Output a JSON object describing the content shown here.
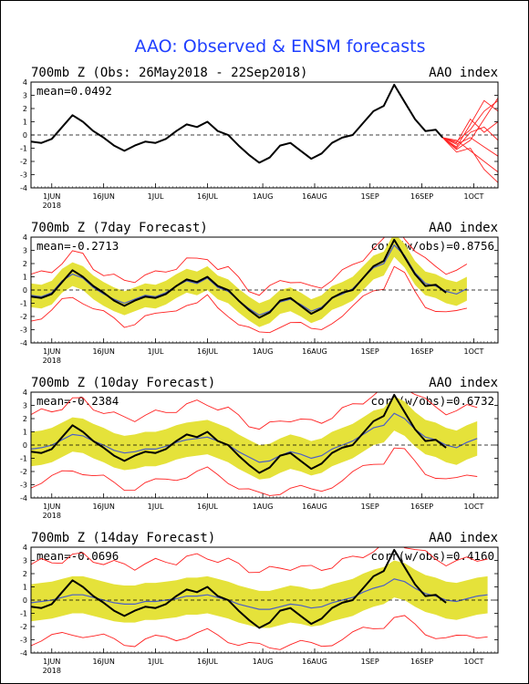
{
  "title": "AAO: Observed & ENSM forecasts",
  "x_ticks": [
    "1JUN",
    "16JUN",
    "1JUL",
    "16JUL",
    "1AUG",
    "16AUG",
    "1SEP",
    "16SEP",
    "1OCT"
  ],
  "x_year": "2018",
  "y_ticks": [
    "4",
    "3",
    "2",
    "1",
    "0",
    "-1",
    "-2",
    "-3",
    "-4"
  ],
  "colors": {
    "title": "#1f3fff",
    "observed": "#000000",
    "spread": "#e5e23a",
    "members": "#ff2020",
    "ens_mean": "#4a5ec8",
    "zero_line": "#000000"
  },
  "chart_data": [
    {
      "type": "line",
      "title": "700mb Z (Obs: 26May2018 - 22Sep2018)",
      "index_label": "AAO index",
      "stat_label": "mean=0.0492",
      "corr_label": "",
      "ylim": [
        -4,
        4
      ],
      "x_range": [
        "2018-05-26",
        "2018-10-08"
      ],
      "zero_line": true,
      "series": [
        {
          "role": "observed",
          "x": [
            "2018-05-26",
            "2018-05-29",
            "2018-06-01",
            "2018-06-04",
            "2018-06-07",
            "2018-06-10",
            "2018-06-13",
            "2018-06-16",
            "2018-06-19",
            "2018-06-22",
            "2018-06-25",
            "2018-06-28",
            "2018-07-01",
            "2018-07-04",
            "2018-07-07",
            "2018-07-10",
            "2018-07-13",
            "2018-07-16",
            "2018-07-19",
            "2018-07-22",
            "2018-07-25",
            "2018-07-28",
            "2018-07-31",
            "2018-08-03",
            "2018-08-06",
            "2018-08-09",
            "2018-08-12",
            "2018-08-15",
            "2018-08-18",
            "2018-08-21",
            "2018-08-24",
            "2018-08-27",
            "2018-08-30",
            "2018-09-02",
            "2018-09-05",
            "2018-09-08",
            "2018-09-11",
            "2018-09-14",
            "2018-09-17",
            "2018-09-20",
            "2018-09-22"
          ],
          "y": [
            -0.5,
            -0.6,
            -0.3,
            0.6,
            1.5,
            1.0,
            0.3,
            -0.2,
            -0.8,
            -1.2,
            -0.8,
            -0.5,
            -0.6,
            -0.3,
            0.3,
            0.8,
            0.6,
            1.0,
            0.3,
            0.0,
            -0.8,
            -1.5,
            -2.1,
            -1.7,
            -0.8,
            -0.6,
            -1.2,
            -1.8,
            -1.4,
            -0.6,
            -0.2,
            0.0,
            0.9,
            1.8,
            2.2,
            3.8,
            2.5,
            1.2,
            0.3,
            0.4,
            -0.2
          ]
        }
      ],
      "forecast_members": [
        {
          "x": [
            "2018-09-22",
            "2018-09-26",
            "2018-09-30",
            "2018-10-04",
            "2018-10-08"
          ],
          "y": [
            -0.2,
            -0.5,
            0.4,
            1.8,
            2.6
          ]
        },
        {
          "x": [
            "2018-09-22",
            "2018-09-26",
            "2018-09-30",
            "2018-10-04",
            "2018-10-08"
          ],
          "y": [
            -0.2,
            -0.9,
            0.8,
            2.6,
            1.8
          ]
        },
        {
          "x": [
            "2018-09-22",
            "2018-09-26",
            "2018-09-30",
            "2018-10-04",
            "2018-10-08"
          ],
          "y": [
            -0.2,
            -1.1,
            -0.4,
            1.2,
            2.8
          ]
        },
        {
          "x": [
            "2018-09-22",
            "2018-09-26",
            "2018-09-30",
            "2018-10-04",
            "2018-10-08"
          ],
          "y": [
            -0.2,
            -0.7,
            -0.2,
            -0.9,
            -1.6
          ]
        },
        {
          "x": [
            "2018-09-22",
            "2018-09-26",
            "2018-09-30",
            "2018-10-04",
            "2018-10-08"
          ],
          "y": [
            -0.2,
            -1.3,
            -1.0,
            -2.6,
            -3.6
          ]
        },
        {
          "x": [
            "2018-09-22",
            "2018-09-26",
            "2018-09-30",
            "2018-10-04",
            "2018-10-08"
          ],
          "y": [
            -0.2,
            -0.4,
            -1.2,
            -2.0,
            -2.8
          ]
        },
        {
          "x": [
            "2018-09-22",
            "2018-09-26",
            "2018-09-30",
            "2018-10-04",
            "2018-10-08"
          ],
          "y": [
            -0.2,
            -1.0,
            0.2,
            0.6,
            -0.4
          ]
        },
        {
          "x": [
            "2018-09-22",
            "2018-09-26",
            "2018-09-30",
            "2018-10-04",
            "2018-10-08"
          ],
          "y": [
            -0.2,
            -0.6,
            1.2,
            0.2,
            1.0
          ]
        }
      ]
    },
    {
      "type": "line",
      "title": "700mb Z (7day Forecast)",
      "index_label": "AAO index",
      "stat_label": "mean=-0.2713",
      "corr_label": "corr(w/obs)=0.8756",
      "ylim": [
        -4,
        4
      ],
      "x_range": [
        "2018-05-26",
        "2018-10-08"
      ],
      "zero_line": true,
      "dates": [
        "2018-05-26",
        "2018-05-29",
        "2018-06-01",
        "2018-06-04",
        "2018-06-07",
        "2018-06-10",
        "2018-06-13",
        "2018-06-16",
        "2018-06-19",
        "2018-06-22",
        "2018-06-25",
        "2018-06-28",
        "2018-07-01",
        "2018-07-04",
        "2018-07-07",
        "2018-07-10",
        "2018-07-13",
        "2018-07-16",
        "2018-07-19",
        "2018-07-22",
        "2018-07-25",
        "2018-07-28",
        "2018-07-31",
        "2018-08-03",
        "2018-08-06",
        "2018-08-09",
        "2018-08-12",
        "2018-08-15",
        "2018-08-18",
        "2018-08-21",
        "2018-08-24",
        "2018-08-27",
        "2018-08-30",
        "2018-09-02",
        "2018-09-05",
        "2018-09-08",
        "2018-09-11",
        "2018-09-14",
        "2018-09-17",
        "2018-09-20",
        "2018-09-23",
        "2018-09-26",
        "2018-09-29"
      ],
      "observed": [
        -0.5,
        -0.6,
        -0.3,
        0.6,
        1.5,
        1.0,
        0.3,
        -0.2,
        -0.8,
        -1.2,
        -0.8,
        -0.5,
        -0.6,
        -0.3,
        0.3,
        0.8,
        0.6,
        1.0,
        0.3,
        0.0,
        -0.8,
        -1.5,
        -2.1,
        -1.7,
        -0.8,
        -0.6,
        -1.2,
        -1.8,
        -1.4,
        -0.6,
        -0.2,
        0.0,
        0.9,
        1.8,
        2.2,
        3.8,
        2.5,
        1.2,
        0.3,
        0.4,
        -0.2
      ],
      "ens_mean": [
        -0.4,
        -0.5,
        -0.2,
        0.7,
        1.2,
        0.9,
        0.2,
        -0.3,
        -0.7,
        -1.0,
        -0.7,
        -0.4,
        -0.5,
        -0.2,
        0.3,
        0.7,
        0.5,
        0.9,
        0.2,
        -0.1,
        -0.8,
        -1.4,
        -1.9,
        -1.6,
        -0.9,
        -0.7,
        -1.1,
        -1.6,
        -1.3,
        -0.6,
        -0.3,
        0.1,
        0.9,
        1.7,
        2.0,
        3.4,
        2.6,
        1.3,
        0.5,
        0.3,
        -0.1,
        -0.3,
        0.1
      ],
      "spread_half": 0.9,
      "members_half": 1.6
    },
    {
      "type": "line",
      "title": "700mb Z (10day Forecast)",
      "index_label": "AAO index",
      "stat_label": "mean=-0.2384",
      "corr_label": "corr(w/obs)=0.6732",
      "ylim": [
        -4,
        4
      ],
      "x_range": [
        "2018-05-26",
        "2018-10-08"
      ],
      "zero_line": true,
      "dates": [
        "2018-05-26",
        "2018-05-29",
        "2018-06-01",
        "2018-06-04",
        "2018-06-07",
        "2018-06-10",
        "2018-06-13",
        "2018-06-16",
        "2018-06-19",
        "2018-06-22",
        "2018-06-25",
        "2018-06-28",
        "2018-07-01",
        "2018-07-04",
        "2018-07-07",
        "2018-07-10",
        "2018-07-13",
        "2018-07-16",
        "2018-07-19",
        "2018-07-22",
        "2018-07-25",
        "2018-07-28",
        "2018-07-31",
        "2018-08-03",
        "2018-08-06",
        "2018-08-09",
        "2018-08-12",
        "2018-08-15",
        "2018-08-18",
        "2018-08-21",
        "2018-08-24",
        "2018-08-27",
        "2018-08-30",
        "2018-09-02",
        "2018-09-05",
        "2018-09-08",
        "2018-09-11",
        "2018-09-14",
        "2018-09-17",
        "2018-09-20",
        "2018-09-23",
        "2018-09-26",
        "2018-09-29",
        "2018-10-02"
      ],
      "observed": [
        -0.5,
        -0.6,
        -0.3,
        0.6,
        1.5,
        1.0,
        0.3,
        -0.2,
        -0.8,
        -1.2,
        -0.8,
        -0.5,
        -0.6,
        -0.3,
        0.3,
        0.8,
        0.6,
        1.0,
        0.3,
        0.0,
        -0.8,
        -1.5,
        -2.1,
        -1.7,
        -0.8,
        -0.6,
        -1.2,
        -1.8,
        -1.4,
        -0.6,
        -0.2,
        0.0,
        0.9,
        1.8,
        2.2,
        3.8,
        2.5,
        1.2,
        0.3,
        0.4,
        -0.2
      ],
      "ens_mean": [
        -0.3,
        -0.2,
        0.0,
        0.4,
        0.8,
        0.7,
        0.3,
        0.0,
        -0.4,
        -0.6,
        -0.5,
        -0.3,
        -0.3,
        -0.1,
        0.2,
        0.4,
        0.5,
        0.6,
        0.3,
        0.0,
        -0.5,
        -0.9,
        -1.3,
        -1.2,
        -0.8,
        -0.5,
        -0.7,
        -1.0,
        -0.8,
        -0.3,
        0.0,
        0.3,
        0.8,
        1.3,
        1.5,
        2.4,
        2.0,
        1.2,
        0.6,
        0.4,
        0.0,
        -0.2,
        0.2,
        0.5
      ],
      "spread_half": 1.3,
      "members_half": 2.6
    },
    {
      "type": "line",
      "title": "700mb Z (14day Forecast)",
      "index_label": "AAO index",
      "stat_label": "mean=-0.0696",
      "corr_label": "corr(w/obs)=0.4160",
      "ylim": [
        -4,
        4
      ],
      "x_range": [
        "2018-05-26",
        "2018-10-08"
      ],
      "zero_line": true,
      "dates": [
        "2018-05-26",
        "2018-05-29",
        "2018-06-01",
        "2018-06-04",
        "2018-06-07",
        "2018-06-10",
        "2018-06-13",
        "2018-06-16",
        "2018-06-19",
        "2018-06-22",
        "2018-06-25",
        "2018-06-28",
        "2018-07-01",
        "2018-07-04",
        "2018-07-07",
        "2018-07-10",
        "2018-07-13",
        "2018-07-16",
        "2018-07-19",
        "2018-07-22",
        "2018-07-25",
        "2018-07-28",
        "2018-07-31",
        "2018-08-03",
        "2018-08-06",
        "2018-08-09",
        "2018-08-12",
        "2018-08-15",
        "2018-08-18",
        "2018-08-21",
        "2018-08-24",
        "2018-08-27",
        "2018-08-30",
        "2018-09-02",
        "2018-09-05",
        "2018-09-08",
        "2018-09-11",
        "2018-09-14",
        "2018-09-17",
        "2018-09-20",
        "2018-09-23",
        "2018-09-26",
        "2018-09-29",
        "2018-10-02",
        "2018-10-05"
      ],
      "observed": [
        -0.5,
        -0.6,
        -0.3,
        0.6,
        1.5,
        1.0,
        0.3,
        -0.2,
        -0.8,
        -1.2,
        -0.8,
        -0.5,
        -0.6,
        -0.3,
        0.3,
        0.8,
        0.6,
        1.0,
        0.3,
        0.0,
        -0.8,
        -1.5,
        -2.1,
        -1.7,
        -0.8,
        -0.6,
        -1.2,
        -1.8,
        -1.4,
        -0.6,
        -0.2,
        0.0,
        0.9,
        1.8,
        2.2,
        3.8,
        2.5,
        1.2,
        0.3,
        0.4,
        -0.2
      ],
      "ens_mean": [
        -0.2,
        -0.1,
        0.0,
        0.2,
        0.4,
        0.4,
        0.2,
        0.0,
        -0.2,
        -0.3,
        -0.3,
        -0.1,
        -0.1,
        0.0,
        0.1,
        0.3,
        0.3,
        0.4,
        0.2,
        0.0,
        -0.3,
        -0.5,
        -0.7,
        -0.7,
        -0.5,
        -0.3,
        -0.4,
        -0.6,
        -0.5,
        -0.2,
        0.0,
        0.2,
        0.6,
        0.9,
        1.1,
        1.6,
        1.4,
        0.9,
        0.5,
        0.3,
        0.0,
        -0.1,
        0.1,
        0.3,
        0.4
      ],
      "spread_half": 1.4,
      "members_half": 2.9
    }
  ]
}
